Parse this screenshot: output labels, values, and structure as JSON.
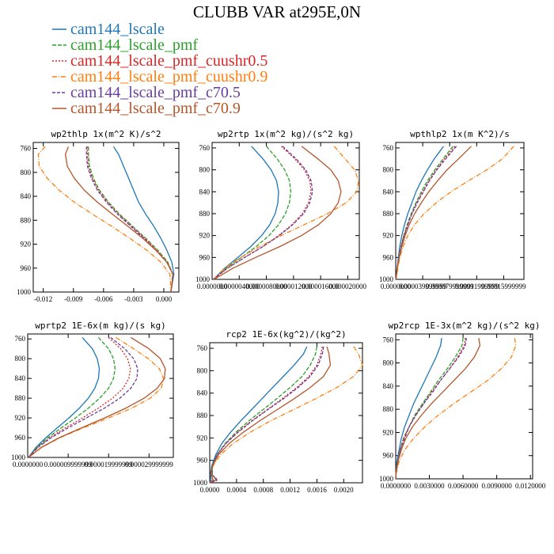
{
  "figure_title": "CLUBB VAR at295E,0N",
  "legend": [
    {
      "label": "cam144_lscale",
      "color": "#1f77b4",
      "dash": ""
    },
    {
      "label": "cam144_lscale_pmf",
      "color": "#2ca02c",
      "dash": "5,2"
    },
    {
      "label": "cam144_lscale_pmf_cuushr0.5",
      "color": "#d62728",
      "dash": "2,2"
    },
    {
      "label": "cam144_lscale_pmf_cuushr0.9",
      "color": "#ff7f0e",
      "dash": "6,2,1,2"
    },
    {
      "label": "cam144_lscale_pmf_c70.5",
      "color": "#6a3d9a",
      "dash": "4,2"
    },
    {
      "label": "cam144_lscale_pmf_c70.9",
      "color": "#b5562a",
      "dash": ""
    }
  ],
  "chart_data": [
    {
      "type": "line",
      "title": "wp2thlp   1x(m^2 K)/s^2",
      "xlim": [
        -0.013,
        0.0015
      ],
      "ylim": [
        1000,
        750
      ],
      "xticks": [
        "-0.012",
        "-0.009",
        "-0.006",
        "-0.003",
        "0.000"
      ],
      "xtick_values": [
        -0.012,
        -0.009,
        -0.006,
        -0.003,
        0.0
      ],
      "yticks": [
        "760",
        "800",
        "840",
        "880",
        "920",
        "960",
        "1000"
      ],
      "ytick_values": [
        760,
        800,
        840,
        880,
        920,
        960,
        1000
      ],
      "y": [
        757,
        770,
        790,
        810,
        830,
        850,
        870,
        890,
        910,
        930,
        950,
        970,
        990,
        1000
      ],
      "series": [
        {
          "name": "cam144_lscale",
          "values": [
            -0.005,
            -0.0045,
            -0.004,
            -0.0035,
            -0.003,
            -0.0025,
            -0.0018,
            -0.001,
            -0.0003,
            0.0003,
            0.0008,
            0.001,
            0.0008,
            0.0007
          ]
        },
        {
          "name": "cam144_lscale_pmf",
          "values": [
            -0.0075,
            -0.0075,
            -0.0074,
            -0.007,
            -0.0064,
            -0.0055,
            -0.0044,
            -0.0031,
            -0.0018,
            -0.0006,
            0.0004,
            0.0009,
            0.0008,
            0.0007
          ]
        },
        {
          "name": "cam144_lscale_pmf_cuushr0.5",
          "values": [
            -0.0076,
            -0.0076,
            -0.0075,
            -0.0071,
            -0.0065,
            -0.0056,
            -0.0045,
            -0.0032,
            -0.0019,
            -0.0007,
            0.0003,
            0.0009,
            0.0008,
            0.0007
          ]
        },
        {
          "name": "cam144_lscale_pmf_cuushr0.9",
          "values": [
            -0.0118,
            -0.0125,
            -0.0124,
            -0.0116,
            -0.0104,
            -0.0089,
            -0.0071,
            -0.0052,
            -0.0034,
            -0.0017,
            -0.0003,
            0.0006,
            0.0007,
            0.0007
          ]
        },
        {
          "name": "cam144_lscale_pmf_c70.5",
          "values": [
            -0.0077,
            -0.0077,
            -0.0076,
            -0.0072,
            -0.0066,
            -0.0057,
            -0.0046,
            -0.0033,
            -0.002,
            -0.0008,
            0.0003,
            0.0009,
            0.0008,
            0.0007
          ]
        },
        {
          "name": "cam144_lscale_pmf_c70.9",
          "values": [
            -0.0095,
            -0.0098,
            -0.0096,
            -0.0089,
            -0.0079,
            -0.0066,
            -0.0051,
            -0.0036,
            -0.0021,
            -0.0008,
            0.0003,
            0.0009,
            0.0008,
            0.0007
          ]
        }
      ]
    },
    {
      "type": "line",
      "title": "wp2rtp   1x(m^2 kg)/(s^2 kg)",
      "xlim": [
        0,
        2.17e-05
      ],
      "ylim": [
        1000,
        750
      ],
      "xticks": [
        "0.0000000",
        "0.0000040000",
        "0.0000080000",
        "0.000012000",
        "0.000016000",
        "0.000020000"
      ],
      "xtick_values": [
        0,
        4e-06,
        8e-06,
        1.2e-05,
        1.6e-05,
        2e-05
      ],
      "yticks": [
        "760",
        "800",
        "840",
        "880",
        "920",
        "960",
        "1000"
      ],
      "ytick_values": [
        760,
        800,
        840,
        880,
        920,
        960,
        1000
      ],
      "y": [
        757,
        780,
        800,
        820,
        840,
        860,
        880,
        900,
        920,
        940,
        960,
        980,
        1000
      ],
      "series": [
        {
          "name": "cam144_lscale",
          "values": [
            5.8e-06,
            7.5e-06,
            8.7e-06,
            9.5e-06,
            9.8e-06,
            9.7e-06,
            9.3e-06,
            8.5e-06,
            7.3e-06,
            5.7e-06,
            3.8e-06,
            1.8e-06,
            2e-07
          ]
        },
        {
          "name": "cam144_lscale_pmf",
          "values": [
            8e-06,
            9.6e-06,
            1.07e-05,
            1.14e-05,
            1.16e-05,
            1.14e-05,
            1.08e-05,
            9.8e-06,
            8.4e-06,
            6.5e-06,
            4.3e-06,
            2e-06,
            2e-07
          ]
        },
        {
          "name": "cam144_lscale_pmf_cuushr0.5",
          "values": [
            1.02e-05,
            1.22e-05,
            1.36e-05,
            1.44e-05,
            1.46e-05,
            1.42e-05,
            1.33e-05,
            1.18e-05,
            9.8e-06,
            7.5e-06,
            4.8e-06,
            2.2e-06,
            2e-07
          ]
        },
        {
          "name": "cam144_lscale_pmf_cuushr0.9",
          "values": [
            1.8e-05,
            1.96e-05,
            2.1e-05,
            2.16e-05,
            2.13e-05,
            1.98e-05,
            1.7e-05,
            1.36e-05,
            1.02e-05,
            7e-06,
            4.2e-06,
            1.8e-06,
            2e-07
          ]
        },
        {
          "name": "cam144_lscale_pmf_c70.5",
          "values": [
            1.04e-05,
            1.24e-05,
            1.38e-05,
            1.46e-05,
            1.48e-05,
            1.44e-05,
            1.35e-05,
            1.19e-05,
            9.9e-06,
            7.5e-06,
            4.8e-06,
            2.2e-06,
            2e-07
          ]
        },
        {
          "name": "cam144_lscale_pmf_c70.9",
          "values": [
            1.32e-05,
            1.56e-05,
            1.75e-05,
            1.86e-05,
            1.9e-05,
            1.86e-05,
            1.75e-05,
            1.57e-05,
            1.32e-05,
            1e-05,
            6.4e-06,
            3e-06,
            3e-07
          ]
        }
      ]
    },
    {
      "type": "line",
      "title": "wpthlp2   1x(m K^2)/s",
      "xlim": [
        0,
        0.00019
      ],
      "ylim": [
        1000,
        750
      ],
      "xticks": [
        "0.0000000",
        "0.000039999999",
        "0.000079999999",
        "0.00011999999",
        "0.00015999999"
      ],
      "xtick_values": [
        0,
        4e-05,
        8e-05,
        0.00012,
        0.00016
      ],
      "yticks": [
        "760",
        "800",
        "840",
        "880",
        "920",
        "960",
        "1000"
      ],
      "ytick_values": [
        760,
        800,
        840,
        880,
        920,
        960,
        1000
      ],
      "y": [
        757,
        780,
        800,
        820,
        840,
        860,
        880,
        900,
        920,
        940,
        960,
        980,
        1000
      ],
      "series": [
        {
          "name": "cam144_lscale",
          "values": [
            7.1e-05,
            5.7e-05,
            4.7e-05,
            3.8e-05,
            3e-05,
            2.4e-05,
            1.8e-05,
            1.3e-05,
            9e-06,
            6e-06,
            4e-06,
            2e-06,
            5e-07
          ]
        },
        {
          "name": "cam144_lscale_pmf",
          "values": [
            8.5e-05,
            7e-05,
            5.8e-05,
            4.7e-05,
            3.8e-05,
            3e-05,
            2.3e-05,
            1.7e-05,
            1.2e-05,
            8e-06,
            5e-06,
            2e-06,
            5e-07
          ]
        },
        {
          "name": "cam144_lscale_pmf_cuushr0.5",
          "values": [
            8.8e-05,
            7.2e-05,
            6e-05,
            4.9e-05,
            4e-05,
            3.1e-05,
            2.4e-05,
            1.8e-05,
            1.2e-05,
            8e-06,
            5e-06,
            2e-06,
            5e-07
          ]
        },
        {
          "name": "cam144_lscale_pmf_cuushr0.9",
          "values": [
            0.000175,
            0.000158,
            0.000135,
            0.000108,
            8.2e-05,
            6e-05,
            4.2e-05,
            2.8e-05,
            1.8e-05,
            1.1e-05,
            6e-06,
            3e-06,
            5e-07
          ]
        },
        {
          "name": "cam144_lscale_pmf_c70.5",
          "values": [
            9e-05,
            7.4e-05,
            6.1e-05,
            5e-05,
            4.1e-05,
            3.2e-05,
            2.4e-05,
            1.8e-05,
            1.3e-05,
            8e-06,
            5e-06,
            2e-06,
            5e-07
          ]
        },
        {
          "name": "cam144_lscale_pmf_c70.9",
          "values": [
            0.000112,
            9.3e-05,
            7.6e-05,
            6.2e-05,
            4.9e-05,
            3.8e-05,
            2.8e-05,
            2e-05,
            1.4e-05,
            9e-06,
            5e-06,
            2e-06,
            5e-07
          ]
        }
      ]
    },
    {
      "type": "line",
      "title": "wprtp2   1E-6x(m kg)/(s kg)",
      "xlim": [
        0,
        3.6e-05
      ],
      "ylim": [
        1000,
        750
      ],
      "xticks": [
        "0.0000000",
        "0.000009999999",
        "0.000019999999",
        "0.000029999999"
      ],
      "xtick_values": [
        0,
        1e-05,
        2e-05,
        3e-05
      ],
      "yticks": [
        "760",
        "800",
        "840",
        "880",
        "920",
        "960",
        "1000"
      ],
      "ytick_values": [
        760,
        800,
        840,
        880,
        920,
        960,
        1000
      ],
      "y": [
        757,
        780,
        800,
        820,
        840,
        860,
        880,
        900,
        920,
        940,
        960,
        980,
        1000
      ],
      "series": [
        {
          "name": "cam144_lscale",
          "values": [
            1.35e-05,
            1.6e-05,
            1.72e-05,
            1.77e-05,
            1.75e-05,
            1.66e-05,
            1.5e-05,
            1.28e-05,
            1.02e-05,
            7.3e-06,
            4.5e-06,
            2e-06,
            2e-07
          ]
        },
        {
          "name": "cam144_lscale_pmf",
          "values": [
            1.75e-05,
            2e-05,
            2.12e-05,
            2.16e-05,
            2.12e-05,
            2e-05,
            1.78e-05,
            1.5e-05,
            1.18e-05,
            8.3e-06,
            5e-06,
            2.2e-06,
            2e-07
          ]
        },
        {
          "name": "cam144_lscale_pmf_cuushr0.5",
          "values": [
            2e-05,
            2.3e-05,
            2.47e-05,
            2.54e-05,
            2.5e-05,
            2.36e-05,
            2.1e-05,
            1.75e-05,
            1.35e-05,
            9.3e-06,
            5.5e-06,
            2.4e-06,
            2e-07
          ]
        },
        {
          "name": "cam144_lscale_pmf_cuushr0.9",
          "values": [
            2.18e-05,
            2.62e-05,
            2.98e-05,
            3.25e-05,
            3.36e-05,
            3.3e-05,
            3.03e-05,
            2.58e-05,
            2e-05,
            1.38e-05,
            8e-06,
            3.4e-06,
            2e-07
          ]
        },
        {
          "name": "cam144_lscale_pmf_c70.5",
          "values": [
            2.05e-05,
            2.4e-05,
            2.62e-05,
            2.72e-05,
            2.7e-05,
            2.55e-05,
            2.28e-05,
            1.9e-05,
            1.45e-05,
            1e-05,
            5.8e-06,
            2.5e-06,
            2e-07
          ]
        },
        {
          "name": "cam144_lscale_pmf_c70.9",
          "values": [
            2.55e-05,
            3e-05,
            3.28e-05,
            3.4e-05,
            3.38e-05,
            3.2e-05,
            2.88e-05,
            2.43e-05,
            1.9e-05,
            1.33e-05,
            7.8e-06,
            3.3e-06,
            2e-07
          ]
        }
      ]
    },
    {
      "type": "line",
      "title": "rcp2   1E-6x(kg^2)/(kg^2)",
      "xlim": [
        0,
        0.00228
      ],
      "ylim": [
        1000,
        750
      ],
      "xticks": [
        "0.0000",
        "0.0004",
        "0.0008",
        "0.0012",
        "0.0016",
        "0.0020"
      ],
      "xtick_values": [
        0,
        0.0004,
        0.0008,
        0.0012,
        0.0016,
        0.002
      ],
      "yticks": [
        "760",
        "800",
        "840",
        "880",
        "920",
        "960",
        "1000"
      ],
      "ytick_values": [
        760,
        800,
        840,
        880,
        920,
        960,
        1000
      ],
      "y": [
        757,
        770,
        790,
        810,
        830,
        850,
        870,
        890,
        910,
        930,
        950,
        970,
        985,
        995,
        1000
      ],
      "series": [
        {
          "name": "cam144_lscale",
          "values": [
            0.00145,
            0.0014,
            0.00126,
            0.0011,
            0.00094,
            0.00078,
            0.00062,
            0.00046,
            0.00031,
            0.00018,
            9e-05,
            3e-05,
            1e-05,
            2e-05,
            0.0
          ]
        },
        {
          "name": "cam144_lscale_pmf",
          "values": [
            0.0016,
            0.00158,
            0.0015,
            0.00138,
            0.0012,
            0.001,
            0.00079,
            0.00058,
            0.00039,
            0.00023,
            0.00011,
            4e-05,
            4e-05,
            0.0001,
            0.0
          ]
        },
        {
          "name": "cam144_lscale_pmf_cuushr0.5",
          "values": [
            0.00168,
            0.00166,
            0.0016,
            0.00148,
            0.0013,
            0.00108,
            0.00085,
            0.00062,
            0.00041,
            0.00024,
            0.00011,
            4e-05,
            3e-05,
            0.00012,
            0.0
          ]
        },
        {
          "name": "cam144_lscale_pmf_cuushr0.9",
          "values": [
            0.00215,
            0.00222,
            0.00228,
            0.00215,
            0.0019,
            0.00158,
            0.00124,
            0.0009,
            0.0006,
            0.00035,
            0.00016,
            5e-05,
            2e-05,
            6e-05,
            0.0
          ]
        },
        {
          "name": "cam144_lscale_pmf_c70.5",
          "values": [
            0.0017,
            0.00168,
            0.00162,
            0.0015,
            0.00132,
            0.0011,
            0.00086,
            0.00063,
            0.00042,
            0.00024,
            0.00011,
            4e-05,
            3e-05,
            0.0001,
            0.0
          ]
        },
        {
          "name": "cam144_lscale_pmf_c70.9",
          "values": [
            0.00175,
            0.00178,
            0.0018,
            0.0017,
            0.0015,
            0.00126,
            0.001,
            0.00074,
            0.0005,
            0.00029,
            0.00013,
            4e-05,
            2e-05,
            5e-05,
            0.0
          ]
        }
      ]
    },
    {
      "type": "line",
      "title": "wp2rcp   1E-3x(m^2 kg)/(s^2 kg)",
      "xlim": [
        0,
        0.0122
      ],
      "ylim": [
        1000,
        750
      ],
      "xticks": [
        "0.0000000",
        "0.0030000",
        "0.0060000",
        "0.0090000",
        "0.0120000"
      ],
      "xtick_values": [
        0,
        0.003,
        0.006,
        0.009,
        0.012
      ],
      "yticks": [
        "760",
        "800",
        "840",
        "880",
        "920",
        "960",
        "1000"
      ],
      "ytick_values": [
        760,
        800,
        840,
        880,
        920,
        960,
        1000
      ],
      "y": [
        757,
        770,
        790,
        810,
        830,
        850,
        870,
        890,
        910,
        930,
        950,
        970,
        990,
        1000
      ],
      "series": [
        {
          "name": "cam144_lscale",
          "values": [
            0.0041,
            0.004,
            0.0036,
            0.0031,
            0.0026,
            0.0021,
            0.0016,
            0.0012,
            0.0008,
            0.0005,
            0.0003,
            0.0001,
            2e-05,
            0.0
          ]
        },
        {
          "name": "cam144_lscale_pmf",
          "values": [
            0.006,
            0.0059,
            0.0053,
            0.0046,
            0.0038,
            0.0031,
            0.0024,
            0.0017,
            0.0012,
            0.0007,
            0.0004,
            0.0002,
            3e-05,
            0.0
          ]
        },
        {
          "name": "cam144_lscale_pmf_cuushr0.5",
          "values": [
            0.0062,
            0.0061,
            0.0055,
            0.0048,
            0.004,
            0.0032,
            0.0025,
            0.0018,
            0.0012,
            0.0007,
            0.0004,
            0.0002,
            3e-05,
            0.0
          ]
        },
        {
          "name": "cam144_lscale_pmf_cuushr0.9",
          "values": [
            0.0106,
            0.0107,
            0.0103,
            0.0094,
            0.0082,
            0.0067,
            0.0052,
            0.0038,
            0.0026,
            0.0016,
            0.0008,
            0.0003,
            5e-05,
            0.0
          ]
        },
        {
          "name": "cam144_lscale_pmf_c70.5",
          "values": [
            0.0063,
            0.0062,
            0.0056,
            0.0048,
            0.004,
            0.0033,
            0.0025,
            0.0018,
            0.0012,
            0.0008,
            0.0004,
            0.0002,
            3e-05,
            0.0
          ]
        },
        {
          "name": "cam144_lscale_pmf_c70.9",
          "values": [
            0.0074,
            0.0075,
            0.007,
            0.0062,
            0.0052,
            0.0042,
            0.0032,
            0.0023,
            0.0015,
            0.0009,
            0.0005,
            0.0002,
            3e-05,
            0.0
          ]
        }
      ]
    }
  ]
}
